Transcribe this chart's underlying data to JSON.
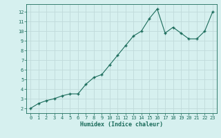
{
  "x": [
    0,
    1,
    2,
    3,
    4,
    5,
    6,
    7,
    8,
    9,
    10,
    11,
    12,
    13,
    14,
    15,
    16,
    17,
    18,
    19,
    20,
    21,
    22,
    23
  ],
  "y": [
    2.0,
    2.5,
    2.8,
    3.0,
    3.3,
    3.5,
    3.5,
    4.5,
    5.2,
    5.5,
    6.5,
    7.5,
    8.5,
    9.5,
    10.0,
    11.3,
    12.3,
    9.8,
    10.4,
    9.8,
    9.2,
    9.2,
    10.0,
    12.0
  ],
  "xlabel": "Humidex (Indice chaleur)",
  "line_color": "#1a6b5a",
  "marker": "+",
  "bg_color": "#d6f0ef",
  "grid_color": "#c0dada",
  "axis_label_color": "#1a6b5a",
  "tick_label_color": "#1a6b5a",
  "xlim": [
    -0.5,
    23.5
  ],
  "ylim": [
    1.5,
    12.8
  ],
  "xticks": [
    0,
    1,
    2,
    3,
    4,
    5,
    6,
    7,
    8,
    9,
    10,
    11,
    12,
    13,
    14,
    15,
    16,
    17,
    18,
    19,
    20,
    21,
    22,
    23
  ],
  "yticks": [
    2,
    3,
    4,
    5,
    6,
    7,
    8,
    9,
    10,
    11,
    12
  ]
}
